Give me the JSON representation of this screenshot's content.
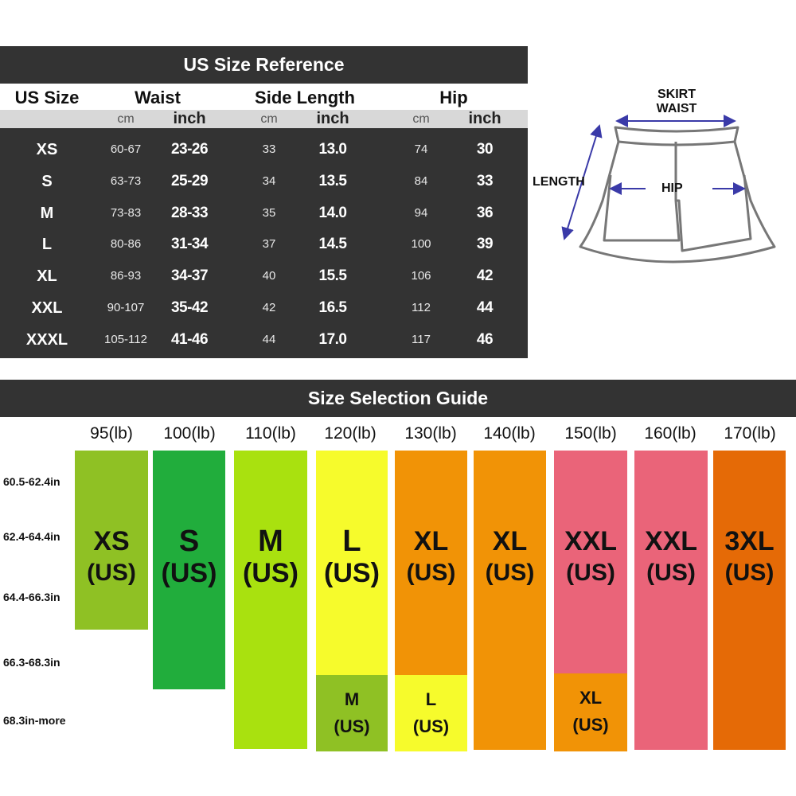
{
  "reference": {
    "title": "US Size Reference",
    "headers": {
      "us_size": "US Size",
      "waist": "Waist",
      "side_length": "Side Length",
      "hip": "Hip"
    },
    "units": {
      "cm": "cm",
      "inch": "inch"
    },
    "rows": [
      {
        "size": "XS",
        "waist_cm": "60-67",
        "waist_in": "23-26",
        "len_cm": "33",
        "len_in": "13.0",
        "hip_cm": "74",
        "hip_in": "30"
      },
      {
        "size": "S",
        "waist_cm": "63-73",
        "waist_in": "25-29",
        "len_cm": "34",
        "len_in": "13.5",
        "hip_cm": "84",
        "hip_in": "33"
      },
      {
        "size": "M",
        "waist_cm": "73-83",
        "waist_in": "28-33",
        "len_cm": "35",
        "len_in": "14.0",
        "hip_cm": "94",
        "hip_in": "36"
      },
      {
        "size": "L",
        "waist_cm": "80-86",
        "waist_in": "31-34",
        "len_cm": "37",
        "len_in": "14.5",
        "hip_cm": "100",
        "hip_in": "39"
      },
      {
        "size": "XL",
        "waist_cm": "86-93",
        "waist_in": "34-37",
        "len_cm": "40",
        "len_in": "15.5",
        "hip_cm": "106",
        "hip_in": "42"
      },
      {
        "size": "XXL",
        "waist_cm": "90-107",
        "waist_in": "35-42",
        "len_cm": "42",
        "len_in": "16.5",
        "hip_cm": "112",
        "hip_in": "44"
      },
      {
        "size": "XXXL",
        "waist_cm": "105-112",
        "waist_in": "41-46",
        "len_cm": "44",
        "len_in": "17.0",
        "hip_cm": "117",
        "hip_in": "46"
      }
    ]
  },
  "diagram": {
    "waist_label_1": "SKIRT",
    "waist_label_2": "WAIST",
    "length_label": "LENGTH",
    "hip_label": "HIP",
    "outline_color": "#777777",
    "arrow_color": "#3a3aa8"
  },
  "guide": {
    "title": "Size Selection Guide",
    "weights": [
      "95(lb)",
      "100(lb)",
      "110(lb)",
      "120(lb)",
      "130(lb)",
      "140(lb)",
      "150(lb)",
      "160(lb)",
      "170(lb)"
    ],
    "heights": [
      "60.5-62.4in",
      "62.4-64.4in",
      "64.4-66.3in",
      "66.3-68.3in",
      "68.3in-more"
    ],
    "us_label": "(US)",
    "columns": [
      {
        "size": "XS",
        "color": "#8fc124"
      },
      {
        "size": "S",
        "color": "#21ad3c"
      },
      {
        "size": "M",
        "color": "#a9e10f"
      },
      {
        "size": "L",
        "color": "#f6fb2c",
        "sub_size": "M",
        "sub_color": "#8fc124"
      },
      {
        "size": "XL",
        "color": "#f19306",
        "sub_size": "L",
        "sub_color": "#f6fb2c"
      },
      {
        "size": "XL",
        "color": "#f19306"
      },
      {
        "size": "XXL",
        "color": "#ea6479",
        "sub_size": "XL",
        "sub_color": "#f19306"
      },
      {
        "size": "XXL",
        "color": "#ea6479"
      },
      {
        "size": "3XL",
        "color": "#e56a06"
      }
    ]
  }
}
